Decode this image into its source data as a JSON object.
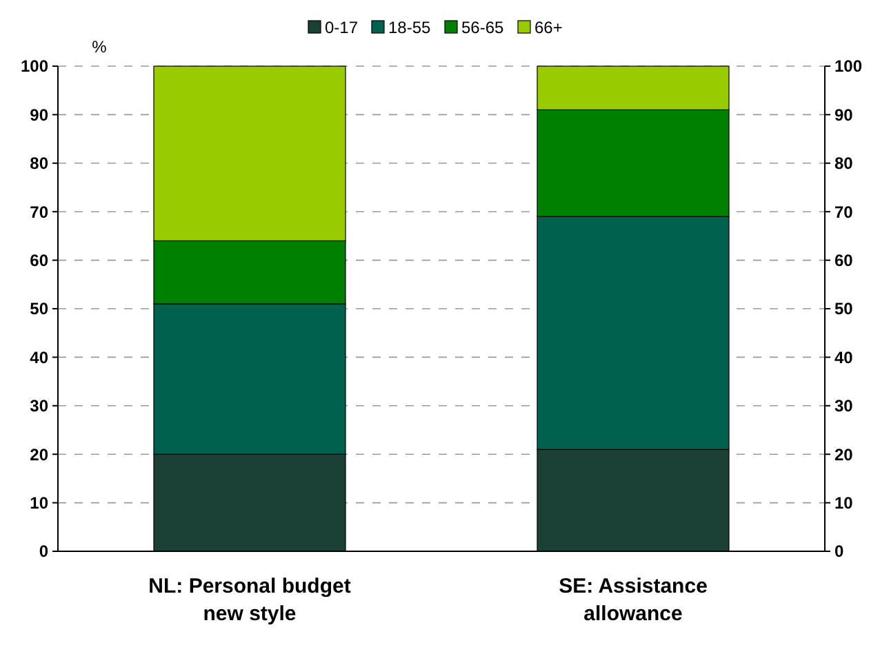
{
  "chart_data": {
    "type": "bar",
    "stacked": true,
    "ylabel": "%",
    "categories": [
      "NL: Personal budget new style",
      "SE: Assistance allowance"
    ],
    "series": [
      {
        "name": "0-17",
        "color": "#1b4035",
        "values": [
          20,
          21
        ]
      },
      {
        "name": "18-55",
        "color": "#00614f",
        "values": [
          31,
          48
        ]
      },
      {
        "name": "56-65",
        "color": "#008000",
        "values": [
          13,
          22
        ]
      },
      {
        "name": "66+",
        "color": "#99cc00",
        "values": [
          36,
          9
        ]
      }
    ],
    "ylim": [
      0,
      100
    ],
    "yticks": [
      0,
      10,
      20,
      30,
      40,
      50,
      60,
      70,
      80,
      90,
      100
    ],
    "y2lim": [
      0,
      100
    ],
    "y2ticks": [
      0,
      10,
      20,
      30,
      40,
      50,
      60,
      70,
      80,
      90,
      100
    ],
    "grid": "y",
    "legend": "top"
  }
}
